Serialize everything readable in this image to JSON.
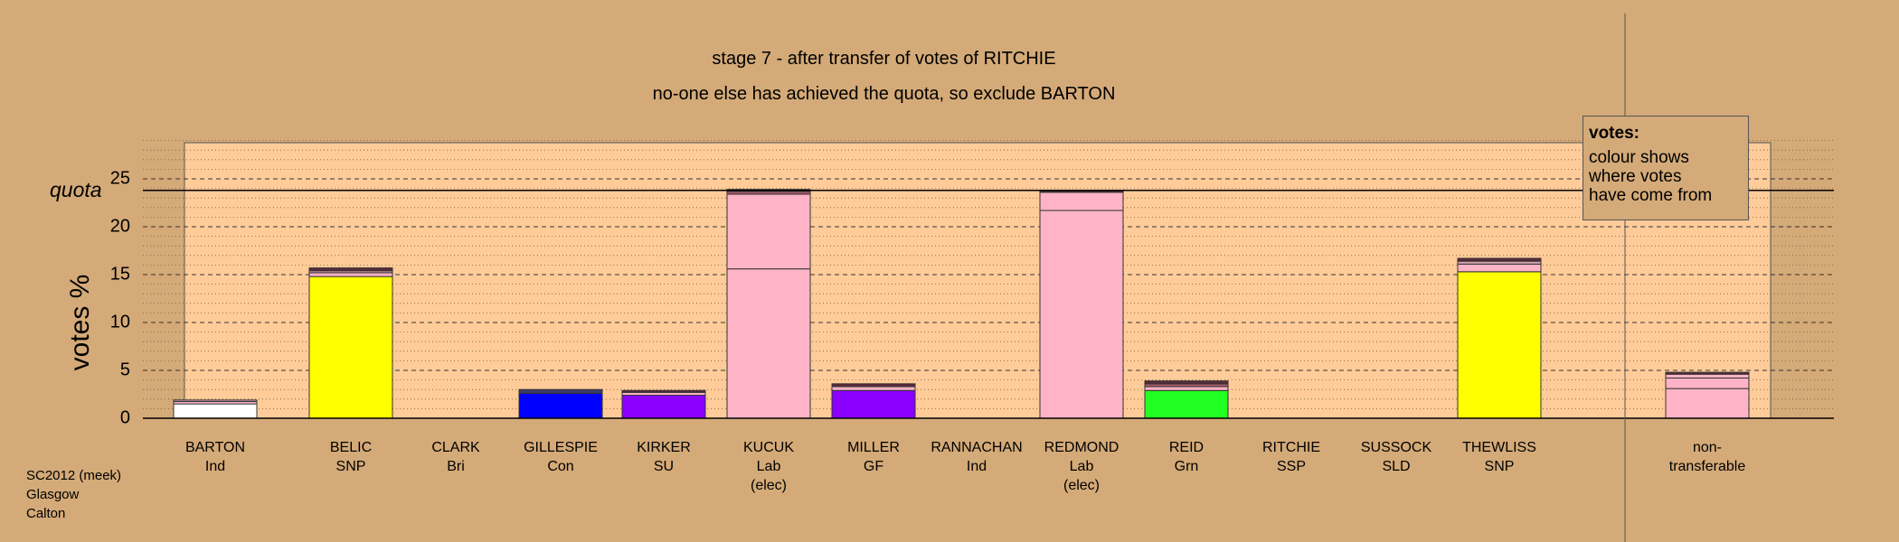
{
  "chart_data": {
    "type": "bar",
    "title": "stage 7 - after transfer of votes of RITCHIE",
    "subtitle": "no-one else has achieved the quota, so exclude BARTON",
    "ylabel": "votes %",
    "ylim": [
      0,
      29
    ],
    "yticks": [
      0,
      5,
      10,
      15,
      20,
      25
    ],
    "quota": 23.8,
    "quota_label": "quota",
    "categories": [
      {
        "name": "BARTON",
        "party": "Ind",
        "note": "",
        "base_color": "#ffffff",
        "segments": [
          {
            "v": 1.5,
            "c": "#ffffff"
          },
          {
            "v": 0.25,
            "c": "#ffb3c6"
          },
          {
            "v": 0.15,
            "c": "#e6a7c0"
          }
        ]
      },
      {
        "name": "BELIC",
        "party": "SNP",
        "note": "",
        "base_color": "#ffff00",
        "segments": [
          {
            "v": 14.8,
            "c": "#ffff00"
          },
          {
            "v": 0.4,
            "c": "#ffb3c6"
          },
          {
            "v": 0.2,
            "c": "#d9a6b0"
          },
          {
            "v": 0.3,
            "c": "#5a2a3a"
          }
        ]
      },
      {
        "name": "CLARK",
        "party": "Bri",
        "note": "",
        "base_color": "#d4aa78",
        "segments": []
      },
      {
        "name": "GILLESPIE",
        "party": "Con",
        "note": "",
        "base_color": "#0000ff",
        "segments": [
          {
            "v": 2.6,
            "c": "#0000ff"
          },
          {
            "v": 0.4,
            "c": "#3a3a6a"
          }
        ]
      },
      {
        "name": "KIRKER",
        "party": "SU",
        "note": "",
        "base_color": "#8b00ff",
        "segments": [
          {
            "v": 2.4,
            "c": "#8b00ff"
          },
          {
            "v": 0.3,
            "c": "#ffb3c6"
          },
          {
            "v": 0.2,
            "c": "#5a2a3a"
          }
        ]
      },
      {
        "name": "KUCUK",
        "party": "Lab",
        "note": "(elec)",
        "base_color": "#ffb3c6",
        "segments": [
          {
            "v": 15.6,
            "c": "#ffb3c6"
          },
          {
            "v": 7.8,
            "c": "#ffb3c6"
          },
          {
            "v": 0.3,
            "c": "#a45a6a"
          },
          {
            "v": 0.2,
            "c": "#5a2a3a"
          }
        ]
      },
      {
        "name": "MILLER",
        "party": "GF",
        "note": "",
        "base_color": "#8b00ff",
        "segments": [
          {
            "v": 2.9,
            "c": "#8b00ff"
          },
          {
            "v": 0.4,
            "c": "#ffb3c6"
          },
          {
            "v": 0.3,
            "c": "#5a2a3a"
          }
        ]
      },
      {
        "name": "RANNACHAN",
        "party": "Ind",
        "note": "",
        "base_color": "#d4aa78",
        "segments": []
      },
      {
        "name": "REDMOND",
        "party": "Lab",
        "note": "(elec)",
        "base_color": "#ffb3c6",
        "segments": [
          {
            "v": 21.7,
            "c": "#ffb3c6"
          },
          {
            "v": 1.9,
            "c": "#ffb3c6"
          },
          {
            "v": 0.2,
            "c": "#5a2a3a"
          }
        ]
      },
      {
        "name": "REID",
        "party": "Grn",
        "note": "",
        "base_color": "#22ff22",
        "segments": [
          {
            "v": 2.9,
            "c": "#22ff22"
          },
          {
            "v": 0.4,
            "c": "#ffb3c6"
          },
          {
            "v": 0.3,
            "c": "#a45a6a"
          },
          {
            "v": 0.3,
            "c": "#5a2a3a"
          }
        ]
      },
      {
        "name": "RITCHIE",
        "party": "SSP",
        "note": "",
        "base_color": "#d4aa78",
        "segments": []
      },
      {
        "name": "SUSSOCK",
        "party": "SLD",
        "note": "",
        "base_color": "#d4aa78",
        "segments": []
      },
      {
        "name": "THEWLISS",
        "party": "SNP",
        "note": "",
        "base_color": "#ffff00",
        "segments": [
          {
            "v": 15.3,
            "c": "#ffff00"
          },
          {
            "v": 0.8,
            "c": "#ffb3c6"
          },
          {
            "v": 0.3,
            "c": "#d9a6b0"
          },
          {
            "v": 0.3,
            "c": "#5a2a3a"
          }
        ]
      },
      {
        "name": "non-",
        "party": "transferable",
        "note": "",
        "base_color": "#ffb3c6",
        "segments": [
          {
            "v": 3.1,
            "c": "#ffb3c6"
          },
          {
            "v": 1.1,
            "c": "#ffb3c6"
          },
          {
            "v": 0.4,
            "c": "#ffb3c6"
          },
          {
            "v": 0.2,
            "c": "#5a2a3a"
          }
        ]
      }
    ]
  },
  "legend": {
    "title": "votes:",
    "lines": [
      "colour shows",
      "where votes",
      "have come from"
    ]
  },
  "footer": {
    "lines": [
      "SC2012 (meek)",
      "Glasgow",
      "Calton"
    ]
  },
  "colors": {
    "background": "#d4aa78",
    "plot_area": "#ffcc99"
  }
}
